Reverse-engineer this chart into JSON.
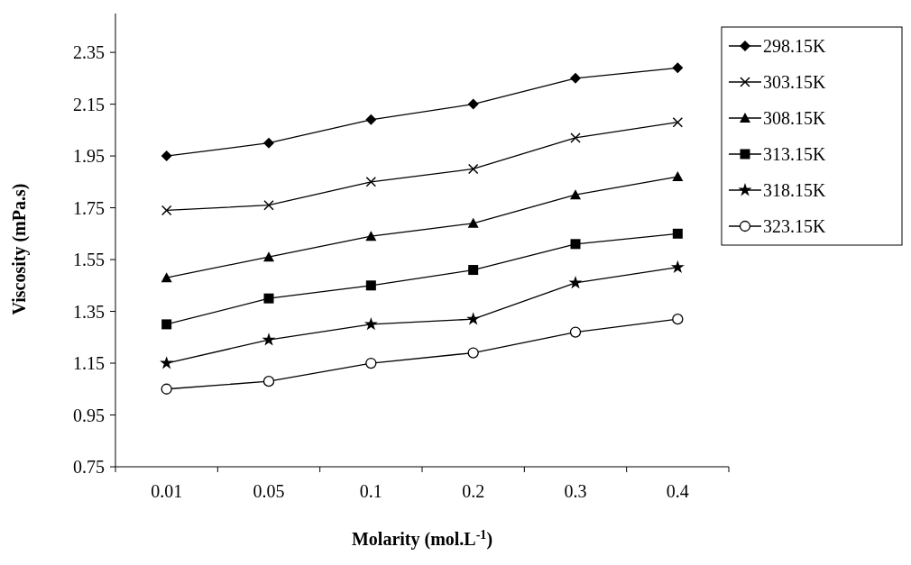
{
  "chart_data": {
    "type": "line",
    "xlabel": "Molarity (mol.L$^{-1}$)",
    "ylabel": "Viscosity (mPa.s)",
    "categories": [
      "0.01",
      "0.05",
      "0.1",
      "0.2",
      "0.3",
      "0.4"
    ],
    "ylim": [
      0.75,
      2.5
    ],
    "yticks": [
      {
        "value": 0.75,
        "label": "0.75"
      },
      {
        "value": 0.95,
        "label": "0.95"
      },
      {
        "value": 1.15,
        "label": "1.15"
      },
      {
        "value": 1.35,
        "label": "1.35"
      },
      {
        "value": 1.55,
        "label": "1.55"
      },
      {
        "value": 1.75,
        "label": "1.75"
      },
      {
        "value": 1.95,
        "label": "1.95"
      },
      {
        "value": 2.15,
        "label": "2.15"
      },
      {
        "value": 2.35,
        "label": "2.35"
      }
    ],
    "grid": false,
    "legend": "top right",
    "line_style": "solid",
    "series": [
      {
        "name": "298.15K",
        "color": "#000000",
        "marker": "diamond",
        "values": [
          1.95,
          2.0,
          2.09,
          2.15,
          2.25,
          2.29
        ]
      },
      {
        "name": "303.15K",
        "color": "#000000",
        "marker": "cross",
        "values": [
          1.74,
          1.76,
          1.85,
          1.9,
          2.02,
          2.08
        ]
      },
      {
        "name": "308.15K",
        "color": "#000000",
        "marker": "triangle",
        "values": [
          1.48,
          1.56,
          1.64,
          1.69,
          1.8,
          1.87
        ]
      },
      {
        "name": "313.15K",
        "color": "#000000",
        "marker": "square",
        "values": [
          1.3,
          1.4,
          1.45,
          1.51,
          1.61,
          1.65
        ]
      },
      {
        "name": "318.15K",
        "color": "#000000",
        "marker": "star",
        "values": [
          1.15,
          1.24,
          1.3,
          1.32,
          1.46,
          1.52
        ]
      },
      {
        "name": "323.15K",
        "color": "#000000",
        "marker": "circle",
        "values": [
          1.05,
          1.08,
          1.15,
          1.19,
          1.27,
          1.32
        ]
      }
    ]
  }
}
